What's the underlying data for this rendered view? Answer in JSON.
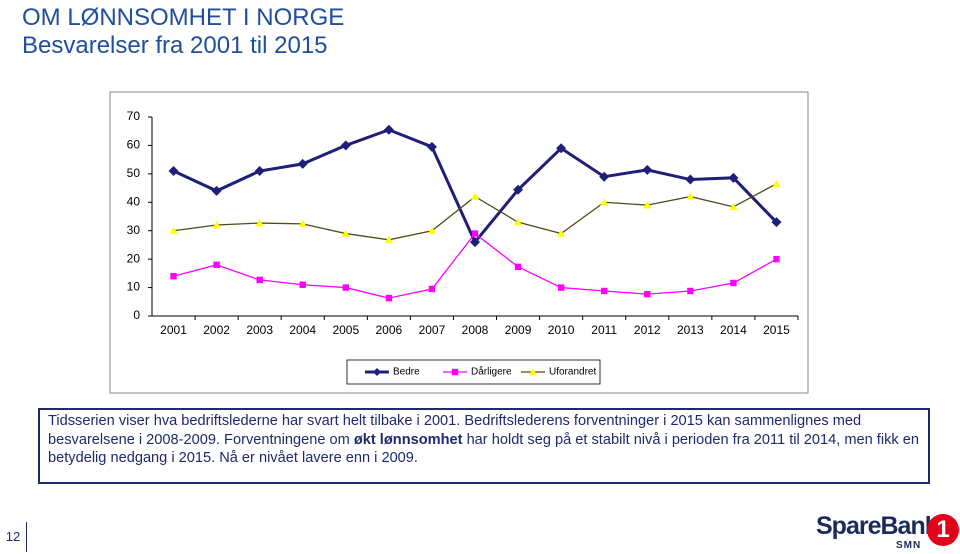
{
  "header": {
    "title": "OM LØNNSOMHET I NORGE",
    "subtitle": "Besvarelser fra 2001 til 2015"
  },
  "chart_data": {
    "type": "line",
    "categories": [
      "2001",
      "2002",
      "2003",
      "2004",
      "2005",
      "2006",
      "2007",
      "2008",
      "2009",
      "2010",
      "2011",
      "2012",
      "2013",
      "2014",
      "2015"
    ],
    "series": [
      {
        "name": "Bedre",
        "color": "#1f1f7a",
        "line_color": "#1f1f7a",
        "marker": "diamond",
        "values": [
          51,
          44,
          51,
          53.5,
          60,
          65.5,
          59.5,
          26,
          44.4,
          59,
          49,
          51.4,
          48,
          48.6,
          33
        ]
      },
      {
        "name": "Dårligere",
        "color": "#ff00ff",
        "line_color": "#ff00ff",
        "marker": "square",
        "values": [
          14,
          18,
          12.7,
          11,
          10,
          6.3,
          9.5,
          29,
          17.3,
          10,
          8.8,
          7.7,
          8.8,
          11.6,
          20
        ]
      },
      {
        "name": "Uforandret",
        "color": "#ffff00",
        "line_color": "#4d4d1a",
        "marker": "triangle",
        "values": [
          30,
          32,
          32.7,
          32.4,
          29,
          26.8,
          30,
          42,
          33,
          29,
          40,
          39,
          42,
          38.4,
          46.5
        ]
      }
    ],
    "ylim": [
      0,
      70
    ],
    "yticks": [
      0,
      10,
      20,
      30,
      40,
      50,
      60,
      70
    ],
    "grid": false,
    "legend": "bottom"
  },
  "text_box": [
    "Tidsserien viser hva bedriftslederne har svart helt tilbake i 2001. Bedriftslederens forventninger i 2015 kan sammenlignes med besvarelsene i 2008-2009. Forventningene om ",
    "økt lønnsomhet",
    " har holdt seg på et stabilt nivå i perioden fra 2011 til 2014, men fikk en betydelig nedgang i 2015. Nå er nivået lavere enn i 2009."
  ],
  "footer": {
    "page_number": "12",
    "logo": {
      "name": "SpareBank",
      "number": "1",
      "region": "SMN"
    }
  }
}
